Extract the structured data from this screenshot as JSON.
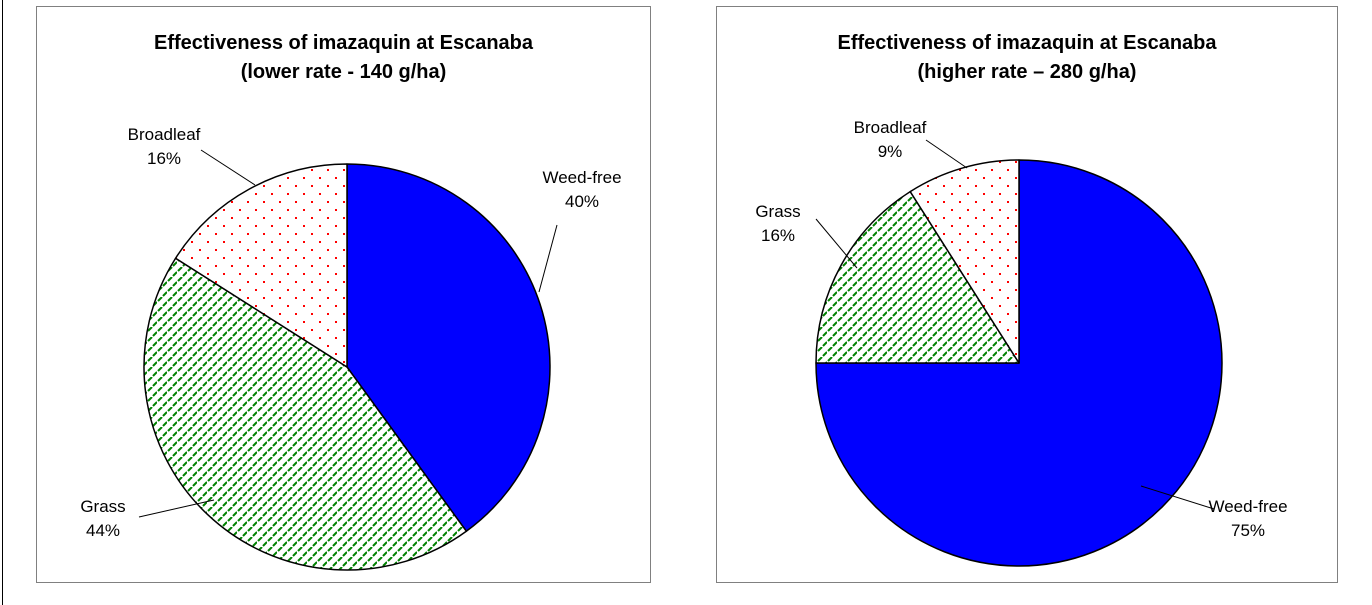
{
  "chart_data": [
    {
      "type": "pie",
      "title": "Effectiveness of imazaquin at Escanaba",
      "subtitle": "(lower rate - 140 g/ha)",
      "slices": [
        {
          "label": "Weed-free",
          "value": 40,
          "display": "40%",
          "fill": "#0000ff",
          "pattern": "solid"
        },
        {
          "label": "Grass",
          "value": 44,
          "display": "44%",
          "fill": "#008000",
          "pattern": "diagonal-dash"
        },
        {
          "label": "Broadleaf",
          "value": 16,
          "display": "16%",
          "fill": "#ff0000",
          "pattern": "dots"
        }
      ],
      "start_angle_deg": 0,
      "direction": "clockwise"
    },
    {
      "type": "pie",
      "title": "Effectiveness of imazaquin at Escanaba",
      "subtitle": "(higher rate – 280 g/ha)",
      "slices": [
        {
          "label": "Weed-free",
          "value": 75,
          "display": "75%",
          "fill": "#0000ff",
          "pattern": "solid"
        },
        {
          "label": "Grass",
          "value": 16,
          "display": "16%",
          "fill": "#008000",
          "pattern": "diagonal-dash"
        },
        {
          "label": "Broadleaf",
          "value": 9,
          "display": "9%",
          "fill": "#ff0000",
          "pattern": "dots"
        }
      ],
      "start_angle_deg": 0,
      "direction": "clockwise"
    }
  ]
}
